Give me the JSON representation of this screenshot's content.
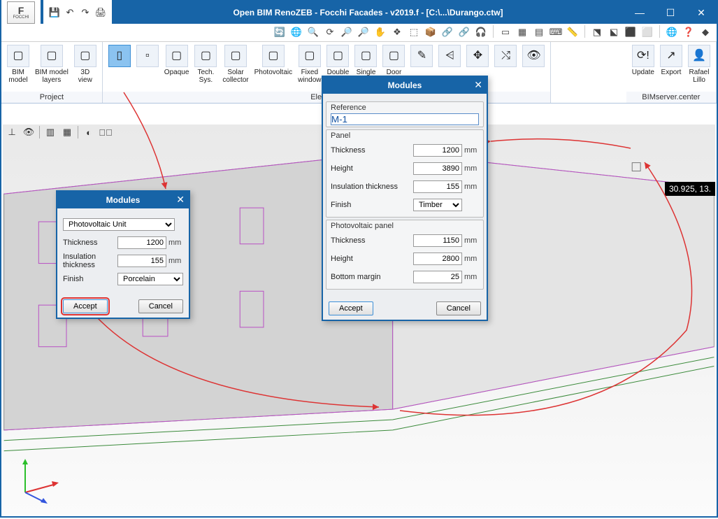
{
  "app": {
    "title": "Open BIM RenoZEB - Focchi Facades - v2019.f - [C:\\...\\Durango.ctw]",
    "logo_text": "F",
    "logo_sub": "FOCCHI"
  },
  "qat": {
    "save_tip": "💾",
    "undo_tip": "↶",
    "redo_tip": "↷",
    "print_tip": "🖨"
  },
  "winbtns": {
    "min": "—",
    "max": "☐",
    "close": "✕"
  },
  "iconrow": {
    "icons": [
      "🔄",
      "🌐",
      "🔍",
      "⟳",
      "🔎",
      "🔎",
      "✋",
      "❖",
      "⬚",
      "📦",
      "🔗",
      "🔗",
      "🎧",
      "|",
      "▭",
      "▦",
      "▤",
      "⌨",
      "📏",
      "|",
      "⬔",
      "⬕",
      "⬛",
      "⬜",
      "|",
      "🌐",
      "❓",
      "◆"
    ]
  },
  "ribbon": {
    "groups": [
      {
        "label": "Project",
        "items": [
          {
            "key": "bim-model",
            "t1": "BIM",
            "t2": "model"
          },
          {
            "key": "bim-layers",
            "t1": "BIM model",
            "t2": "layers"
          },
          {
            "key": "3d-view",
            "t1": "3D",
            "t2": "view"
          }
        ]
      },
      {
        "label": "Elements",
        "items": [
          {
            "key": "module",
            "t1": "",
            "t2": "",
            "sel": true,
            "glyph": "▯"
          },
          {
            "key": "module-sub",
            "t1": "",
            "t2": "",
            "glyph": "▫"
          },
          {
            "key": "opaque",
            "t1": "Opaque",
            "t2": ""
          },
          {
            "key": "tech-sys",
            "t1": "Tech.",
            "t2": "Sys."
          },
          {
            "key": "solar",
            "t1": "Solar",
            "t2": "collector"
          },
          {
            "key": "photovoltaic",
            "t1": "Photovoltaic",
            "t2": ""
          },
          {
            "key": "fixed-window",
            "t1": "Fixed",
            "t2": "window"
          },
          {
            "key": "double-window",
            "t1": "Double",
            "t2": "wind…"
          },
          {
            "key": "single",
            "t1": "Single",
            "t2": ""
          },
          {
            "key": "door",
            "t1": "Door",
            "t2": ""
          },
          {
            "key": "edit1",
            "t1": "",
            "t2": "",
            "glyph": "✎"
          },
          {
            "key": "edit2",
            "t1": "",
            "t2": "",
            "glyph": "⩤"
          },
          {
            "key": "edit3",
            "t1": "",
            "t2": "",
            "glyph": "✥"
          },
          {
            "key": "edit4",
            "t1": "",
            "t2": "",
            "glyph": "⤭"
          },
          {
            "key": "eye",
            "t1": "",
            "t2": "",
            "glyph": "👁"
          }
        ]
      },
      {
        "label": "BIMserver.center",
        "items": [
          {
            "key": "update",
            "t1": "Update",
            "t2": "",
            "glyph": "⟳!"
          },
          {
            "key": "export",
            "t1": "Export",
            "t2": "",
            "glyph": "↗"
          },
          {
            "key": "user",
            "t1": "Rafael",
            "t2": "Lillo",
            "glyph": "👤"
          }
        ]
      }
    ]
  },
  "viewport": {
    "coord": "30.925, 13.",
    "vt_icons": [
      "⊥",
      "👁",
      "|",
      "▥",
      "▦",
      "|",
      "◐",
      "👁⃠"
    ]
  },
  "dialog_small": {
    "title": "Modules",
    "type_value": "Photovoltaic Unit",
    "rows": [
      {
        "label": "Thickness",
        "value": "1200",
        "unit": "mm"
      },
      {
        "label": "Insulation thickness",
        "value": "155",
        "unit": "mm"
      }
    ],
    "finish_label": "Finish",
    "finish_value": "Porcelain",
    "accept": "Accept",
    "cancel": "Cancel"
  },
  "dialog_big": {
    "title": "Modules",
    "ref_label": "Reference",
    "ref_value": "M-1",
    "panel_label": "Panel",
    "panel_rows": [
      {
        "label": "Thickness",
        "value": "1200",
        "unit": "mm"
      },
      {
        "label": "Height",
        "value": "3890",
        "unit": "mm"
      },
      {
        "label": "Insulation thickness",
        "value": "155",
        "unit": "mm"
      }
    ],
    "finish_label": "Finish",
    "finish_value": "Timber",
    "pv_label": "Photovoltaic panel",
    "pv_rows": [
      {
        "label": "Thickness",
        "value": "1150",
        "unit": "mm"
      },
      {
        "label": "Height",
        "value": "2800",
        "unit": "mm"
      },
      {
        "label": "Bottom margin",
        "value": "25",
        "unit": "mm"
      }
    ],
    "accept": "Accept",
    "cancel": "Cancel"
  },
  "colors": {
    "primary": "#1764a7",
    "red": "#d33"
  }
}
